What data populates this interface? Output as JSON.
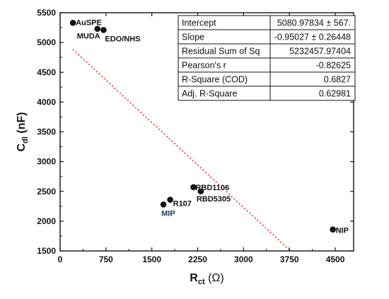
{
  "chart_data": {
    "type": "scatter",
    "xlabel": {
      "main": "R",
      "sub": "ct",
      "unit": " (Ω)"
    },
    "ylabel": {
      "main": "C",
      "sub": "dl",
      "unit": " (nF)"
    },
    "xlim": [
      0,
      4800
    ],
    "ylim": [
      1500,
      5500
    ],
    "x_ticks": [
      0,
      750,
      1500,
      2250,
      3000,
      3750,
      4500
    ],
    "y_ticks": [
      1500,
      2000,
      2500,
      3000,
      3500,
      4000,
      4500,
      5000,
      5500
    ],
    "points": [
      {
        "label": "AuSPE",
        "x": 210,
        "y": 5330,
        "color": ""
      },
      {
        "label": "MUDA",
        "x": 610,
        "y": 5230,
        "color": ""
      },
      {
        "label": "EDO/NHS",
        "x": 710,
        "y": 5210,
        "color": ""
      },
      {
        "label": "RBD1106",
        "x": 2180,
        "y": 2570,
        "color": ""
      },
      {
        "label": "RBD5305",
        "x": 2300,
        "y": 2500,
        "color": ""
      },
      {
        "label": "R107",
        "x": 1800,
        "y": 2360,
        "color": ""
      },
      {
        "label": "MIP",
        "x": 1690,
        "y": 2280,
        "color": "blue"
      },
      {
        "label": "NIP",
        "x": 4460,
        "y": 1860,
        "color": ""
      }
    ],
    "fit": {
      "intercept": 5080.97834,
      "slope": -0.95027,
      "x_range": [
        210,
        3750
      ],
      "color": "#e0201b",
      "style": "dotted"
    },
    "stats_table": [
      [
        "Intercept",
        "5080.97834 ± 567."
      ],
      [
        "Slope",
        "-0.95027 ± 0.26448"
      ],
      [
        "Residual Sum of Sq",
        "5232457.97404"
      ],
      [
        "Pearson's r",
        "-0.82625"
      ],
      [
        "R-Square (COD)",
        "0.6827"
      ],
      [
        "Adj. R-Square",
        "0.62981"
      ]
    ],
    "grid": false,
    "colors": {
      "points": "#111111",
      "label_highlight": "#1f3a5f"
    }
  }
}
